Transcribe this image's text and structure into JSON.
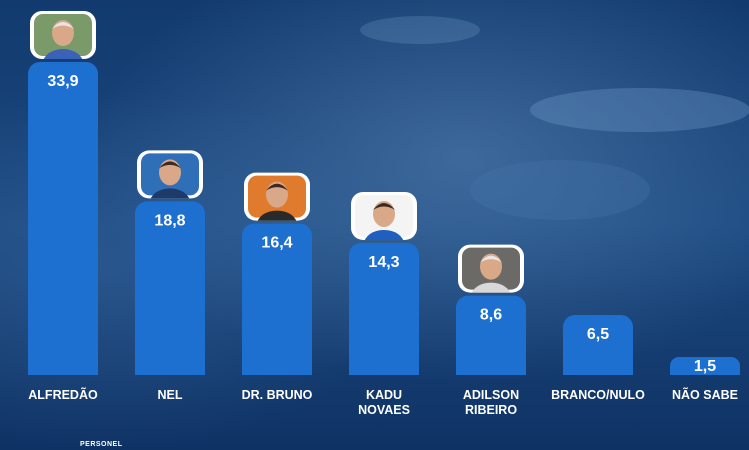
{
  "chart_data": {
    "type": "bar",
    "categories": [
      "ALFREDÃO",
      "NEL",
      "DR. BRUNO",
      "KADU NOVAES",
      "ADILSON RIBEIRO",
      "BRANCO/NULO",
      "NÃO SABE"
    ],
    "category_lines": [
      [
        "ALFREDÃO"
      ],
      [
        "NEL"
      ],
      [
        "DR. BRUNO"
      ],
      [
        "KADU",
        "NOVAES"
      ],
      [
        "ADILSON",
        "RIBEIRO"
      ],
      [
        "BRANCO/NULO"
      ],
      [
        "NÃO SABE"
      ]
    ],
    "values": [
      33.9,
      18.8,
      16.4,
      14.3,
      8.6,
      6.5,
      1.5
    ],
    "value_labels": [
      "33,9",
      "18,8",
      "16,4",
      "14,3",
      "8,6",
      "6,5",
      "1,5"
    ],
    "title": "",
    "xlabel": "",
    "ylabel": "",
    "ylim": [
      0,
      33.9
    ],
    "grid": false,
    "legend": "none",
    "photos": [
      "ALFREDÃO",
      "NEL",
      "DR. BRUNO",
      "KADU NOVAES",
      "ADILSON RIBEIRO"
    ]
  },
  "colors": {
    "bar": "#1d6fd0",
    "bar_edge": "#2b7fe0",
    "background_dark": "#0d2b57",
    "background_light": "#3d6a9c",
    "photo_frame": "#ffffff"
  },
  "footer": {
    "text": "PERSONEL"
  }
}
